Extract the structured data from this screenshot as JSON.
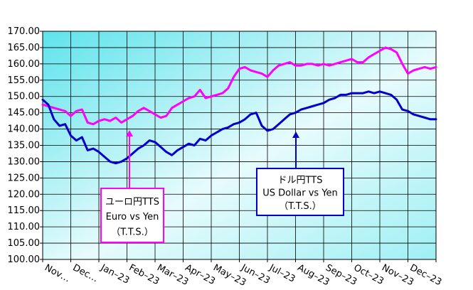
{
  "chart_data": {
    "type": "line",
    "title": "",
    "xlabel": "",
    "ylabel": "",
    "ylim": [
      100,
      170
    ],
    "grid": true,
    "yticks": [
      "100.00",
      "105.00",
      "110.00",
      "115.00",
      "120.00",
      "125.00",
      "130.00",
      "135.00",
      "140.00",
      "145.00",
      "150.00",
      "155.00",
      "160.00",
      "165.00",
      "170.00"
    ],
    "categories": [
      "Nov-22",
      "Dec-22",
      "Jan-23",
      "Feb-23",
      "Mar-23",
      "Apr-23",
      "May-23",
      "Jun-23",
      "Jul-23",
      "Aug-23",
      "Sep-23",
      "Oct-23",
      "Nov-23",
      "Dec-23"
    ],
    "category_labels": [
      "Nov…",
      "Dec…",
      "Jan–23",
      "Feb–23",
      "Mar–23",
      "Apr–23",
      "May–23",
      "Jun–23",
      "Jul–23",
      "Aug–23",
      "Sep–23",
      "Oct–23",
      "Nov–23",
      "Dec–23"
    ],
    "series": [
      {
        "key": "euro",
        "color": "#ff00ff",
        "x": [
          0,
          0.2,
          0.4,
          0.6,
          0.8,
          1.0,
          1.2,
          1.4,
          1.6,
          1.8,
          2.0,
          2.2,
          2.4,
          2.6,
          2.8,
          3.0,
          3.2,
          3.4,
          3.6,
          3.8,
          4.0,
          4.2,
          4.4,
          4.6,
          4.8,
          5.0,
          5.2,
          5.4,
          5.6,
          5.8,
          6.0,
          6.2,
          6.4,
          6.6,
          6.8,
          7.0,
          7.2,
          7.4,
          7.6,
          7.8,
          8.0,
          8.2,
          8.4,
          8.6,
          8.8,
          9.0,
          9.2,
          9.4,
          9.6,
          9.8,
          10.0,
          10.2,
          10.4,
          10.6,
          10.8,
          11.0,
          11.2,
          11.4,
          11.6,
          11.8,
          12.0,
          12.2,
          12.4,
          12.6,
          12.8,
          13.0,
          13.2,
          13.4,
          13.6,
          13.8,
          14.0
        ],
        "values": [
          147.5,
          147.0,
          146.5,
          146.0,
          145.5,
          144.0,
          145.5,
          146.0,
          142.0,
          141.5,
          142.5,
          143.0,
          142.5,
          143.5,
          142.0,
          143.0,
          144.0,
          145.5,
          146.5,
          145.5,
          144.5,
          143.5,
          144.0,
          146.5,
          147.5,
          148.5,
          149.5,
          150.0,
          152.0,
          149.5,
          150.0,
          150.5,
          151.0,
          152.5,
          156.0,
          158.5,
          159.0,
          158.0,
          157.5,
          157.0,
          156.0,
          158.0,
          159.5,
          160.0,
          160.5,
          159.5,
          159.5,
          160.0,
          160.0,
          159.5,
          160.0,
          159.5,
          160.0,
          160.5,
          161.0,
          161.5,
          160.5,
          160.5,
          162.0,
          163.0,
          164.0,
          165.0,
          164.5,
          163.5,
          160.0,
          157.0,
          158.0,
          158.5,
          159.0,
          158.5,
          159.0
        ]
      },
      {
        "key": "usd",
        "color": "#0000cc",
        "x": [
          0,
          0.2,
          0.4,
          0.6,
          0.8,
          1.0,
          1.2,
          1.4,
          1.6,
          1.8,
          2.0,
          2.2,
          2.4,
          2.6,
          2.8,
          3.0,
          3.2,
          3.4,
          3.6,
          3.8,
          4.0,
          4.2,
          4.4,
          4.6,
          4.8,
          5.0,
          5.2,
          5.4,
          5.6,
          5.8,
          6.0,
          6.2,
          6.4,
          6.6,
          6.8,
          7.0,
          7.2,
          7.4,
          7.6,
          7.8,
          8.0,
          8.2,
          8.4,
          8.6,
          8.8,
          9.0,
          9.2,
          9.4,
          9.6,
          9.8,
          10.0,
          10.2,
          10.4,
          10.6,
          10.8,
          11.0,
          11.2,
          11.4,
          11.6,
          11.8,
          12.0,
          12.2,
          12.4,
          12.6,
          12.8,
          13.0,
          13.2,
          13.4,
          13.6,
          13.8,
          14.0
        ],
        "values": [
          149.0,
          147.5,
          143.0,
          141.0,
          141.5,
          138.0,
          136.5,
          137.5,
          133.5,
          134.0,
          133.0,
          131.5,
          130.0,
          129.5,
          130.0,
          131.0,
          132.5,
          134.0,
          135.0,
          136.5,
          136.0,
          134.5,
          133.0,
          132.0,
          133.5,
          134.5,
          135.5,
          135.0,
          137.0,
          136.5,
          138.0,
          139.0,
          140.0,
          140.5,
          141.5,
          142.0,
          143.0,
          144.5,
          145.0,
          141.0,
          139.5,
          140.0,
          141.5,
          143.0,
          144.5,
          145.0,
          146.0,
          146.5,
          147.0,
          147.5,
          148.0,
          149.0,
          149.5,
          150.5,
          150.5,
          151.0,
          151.0,
          151.0,
          151.5,
          151.0,
          151.5,
          151.0,
          150.5,
          149.0,
          146.0,
          145.5,
          144.5,
          144.0,
          143.5,
          143.0,
          143.0
        ]
      }
    ],
    "annotations": [
      {
        "key": "euro",
        "lines": [
          "ユーロ円TTS",
          "Euro vs Yen",
          "（T.T.S.）"
        ],
        "border": "#ff00ff",
        "arrow_color": "#ff00ff"
      },
      {
        "key": "usd",
        "lines": [
          "ドル円TTS",
          "US Dollar vs Yen",
          "（T.T.S.）"
        ],
        "border": "#0000cc",
        "arrow_color": "#0000cc"
      }
    ]
  }
}
